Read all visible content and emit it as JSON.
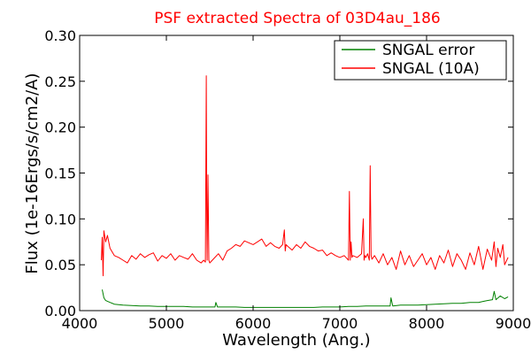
{
  "chart_data": {
    "type": "line",
    "title": "PSF extracted Spectra of 03D4au_186",
    "xlabel": "Wavelength (Ang.)",
    "ylabel": "Flux (1e-16Ergs/s/cm2/A)",
    "xlim": [
      4000,
      9000
    ],
    "ylim": [
      0.0,
      0.3
    ],
    "xticks": [
      4000,
      5000,
      6000,
      7000,
      8000,
      9000
    ],
    "xtick_labels": [
      "4000",
      "5000",
      "6000",
      "7000",
      "8000",
      "9000"
    ],
    "yticks": [
      0.0,
      0.05,
      0.1,
      0.15,
      0.2,
      0.25,
      0.3
    ],
    "ytick_labels": [
      "0.00",
      "0.05",
      "0.10",
      "0.15",
      "0.20",
      "0.25",
      "0.30"
    ],
    "grid": false,
    "legend_position": "top-right",
    "series": [
      {
        "name": "SNGAL error",
        "color": "#008000",
        "x": [
          4260,
          4280,
          4300,
          4350,
          4400,
          4500,
          4600,
          4700,
          4800,
          4900,
          5000,
          5100,
          5200,
          5300,
          5400,
          5500,
          5560,
          5570,
          5590,
          5700,
          5800,
          5900,
          6000,
          6100,
          6200,
          6300,
          6400,
          6500,
          6600,
          6700,
          6800,
          6900,
          7000,
          7100,
          7200,
          7300,
          7400,
          7500,
          7580,
          7590,
          7610,
          7700,
          7800,
          7900,
          8000,
          8100,
          8200,
          8300,
          8400,
          8500,
          8600,
          8650,
          8700,
          8760,
          8780,
          8800,
          8850,
          8900,
          8940
        ],
        "values": [
          0.023,
          0.014,
          0.011,
          0.009,
          0.007,
          0.006,
          0.0055,
          0.005,
          0.005,
          0.0045,
          0.0045,
          0.0045,
          0.0045,
          0.004,
          0.004,
          0.004,
          0.004,
          0.009,
          0.004,
          0.004,
          0.004,
          0.0035,
          0.0035,
          0.0035,
          0.0035,
          0.0035,
          0.0035,
          0.0035,
          0.0035,
          0.0035,
          0.004,
          0.004,
          0.004,
          0.0045,
          0.0045,
          0.005,
          0.005,
          0.005,
          0.005,
          0.014,
          0.005,
          0.006,
          0.006,
          0.006,
          0.0065,
          0.007,
          0.0075,
          0.008,
          0.008,
          0.009,
          0.009,
          0.01,
          0.011,
          0.012,
          0.021,
          0.012,
          0.016,
          0.013,
          0.015
        ]
      },
      {
        "name": "SNGAL (10A)",
        "color": "#ff0000",
        "x": [
          4250,
          4260,
          4270,
          4280,
          4300,
          4320,
          4350,
          4400,
          4450,
          4500,
          4550,
          4600,
          4650,
          4700,
          4750,
          4800,
          4850,
          4900,
          4950,
          5000,
          5050,
          5100,
          5150,
          5200,
          5250,
          5300,
          5350,
          5400,
          5430,
          5450,
          5460,
          5465,
          5470,
          5480,
          5490,
          5500,
          5550,
          5600,
          5650,
          5700,
          5750,
          5800,
          5850,
          5900,
          5950,
          6000,
          6050,
          6100,
          6150,
          6200,
          6250,
          6300,
          6340,
          6360,
          6370,
          6380,
          6400,
          6450,
          6500,
          6550,
          6600,
          6650,
          6700,
          6750,
          6800,
          6850,
          6900,
          6950,
          7000,
          7050,
          7100,
          7110,
          7120,
          7130,
          7140,
          7150,
          7200,
          7250,
          7270,
          7280,
          7290,
          7300,
          7320,
          7340,
          7350,
          7360,
          7370,
          7400,
          7450,
          7500,
          7550,
          7600,
          7650,
          7700,
          7750,
          7800,
          7850,
          7900,
          7950,
          8000,
          8050,
          8100,
          8150,
          8200,
          8250,
          8300,
          8350,
          8400,
          8450,
          8500,
          8550,
          8600,
          8650,
          8700,
          8750,
          8780,
          8800,
          8820,
          8850,
          8880,
          8900,
          8940
        ],
        "values": [
          0.055,
          0.08,
          0.038,
          0.087,
          0.075,
          0.082,
          0.068,
          0.06,
          0.058,
          0.055,
          0.052,
          0.06,
          0.056,
          0.062,
          0.058,
          0.061,
          0.063,
          0.054,
          0.06,
          0.057,
          0.062,
          0.055,
          0.06,
          0.058,
          0.056,
          0.062,
          0.055,
          0.052,
          0.055,
          0.053,
          0.256,
          0.11,
          0.055,
          0.148,
          0.055,
          0.052,
          0.057,
          0.062,
          0.055,
          0.065,
          0.068,
          0.072,
          0.07,
          0.076,
          0.074,
          0.072,
          0.075,
          0.078,
          0.07,
          0.074,
          0.07,
          0.068,
          0.072,
          0.088,
          0.065,
          0.072,
          0.07,
          0.066,
          0.072,
          0.068,
          0.075,
          0.07,
          0.068,
          0.065,
          0.066,
          0.06,
          0.063,
          0.06,
          0.058,
          0.06,
          0.055,
          0.13,
          0.055,
          0.075,
          0.058,
          0.06,
          0.058,
          0.062,
          0.1,
          0.055,
          0.06,
          0.058,
          0.062,
          0.055,
          0.158,
          0.06,
          0.056,
          0.06,
          0.052,
          0.062,
          0.05,
          0.058,
          0.045,
          0.065,
          0.05,
          0.06,
          0.048,
          0.055,
          0.062,
          0.05,
          0.058,
          0.045,
          0.06,
          0.052,
          0.066,
          0.048,
          0.062,
          0.055,
          0.045,
          0.063,
          0.05,
          0.07,
          0.045,
          0.067,
          0.055,
          0.075,
          0.048,
          0.068,
          0.058,
          0.072,
          0.05,
          0.058
        ]
      }
    ]
  }
}
